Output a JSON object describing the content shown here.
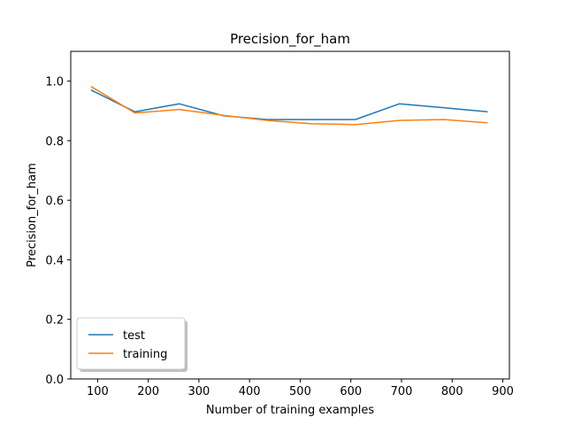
{
  "chart_data": {
    "type": "line",
    "title": "Precision_for_ham",
    "xlabel": "Number of training examples",
    "ylabel": "Precision_for_ham",
    "xlim": [
      47,
      913
    ],
    "ylim": [
      0,
      1.1
    ],
    "xticks": [
      100,
      200,
      300,
      400,
      500,
      600,
      700,
      800,
      900
    ],
    "yticks": [
      0.0,
      0.2,
      0.4,
      0.6,
      0.8,
      1.0
    ],
    "xtick_labels": [
      "100",
      "200",
      "300",
      "400",
      "500",
      "600",
      "700",
      "800",
      "900"
    ],
    "ytick_labels": [
      "0.0",
      "0.2",
      "0.4",
      "0.6",
      "0.8",
      "1.0"
    ],
    "grid": false,
    "legend_position": "bottom-left",
    "x": [
      87,
      174,
      261,
      348,
      435,
      522,
      609,
      696,
      783,
      870
    ],
    "series": [
      {
        "name": "test",
        "color": "#1f77b4",
        "values": [
          0.97,
          0.897,
          0.924,
          0.884,
          0.871,
          0.871,
          0.871,
          0.924,
          0.911,
          0.897
        ]
      },
      {
        "name": "training",
        "color": "#ff7f0e",
        "values": [
          0.982,
          0.893,
          0.905,
          0.885,
          0.868,
          0.857,
          0.854,
          0.868,
          0.871,
          0.86
        ]
      }
    ]
  }
}
